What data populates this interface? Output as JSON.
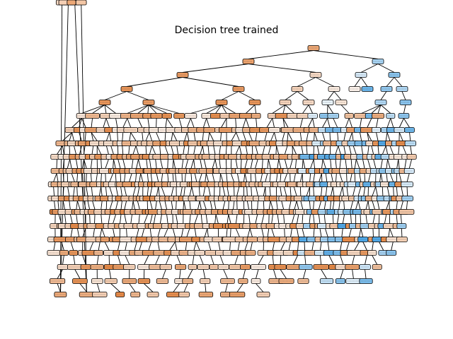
{
  "figure": {
    "title": "Decision tree trained"
  },
  "legend_colors": {
    "class_a": "#e58139",
    "class_b": "#399de5",
    "edge": "#000000"
  }
}
